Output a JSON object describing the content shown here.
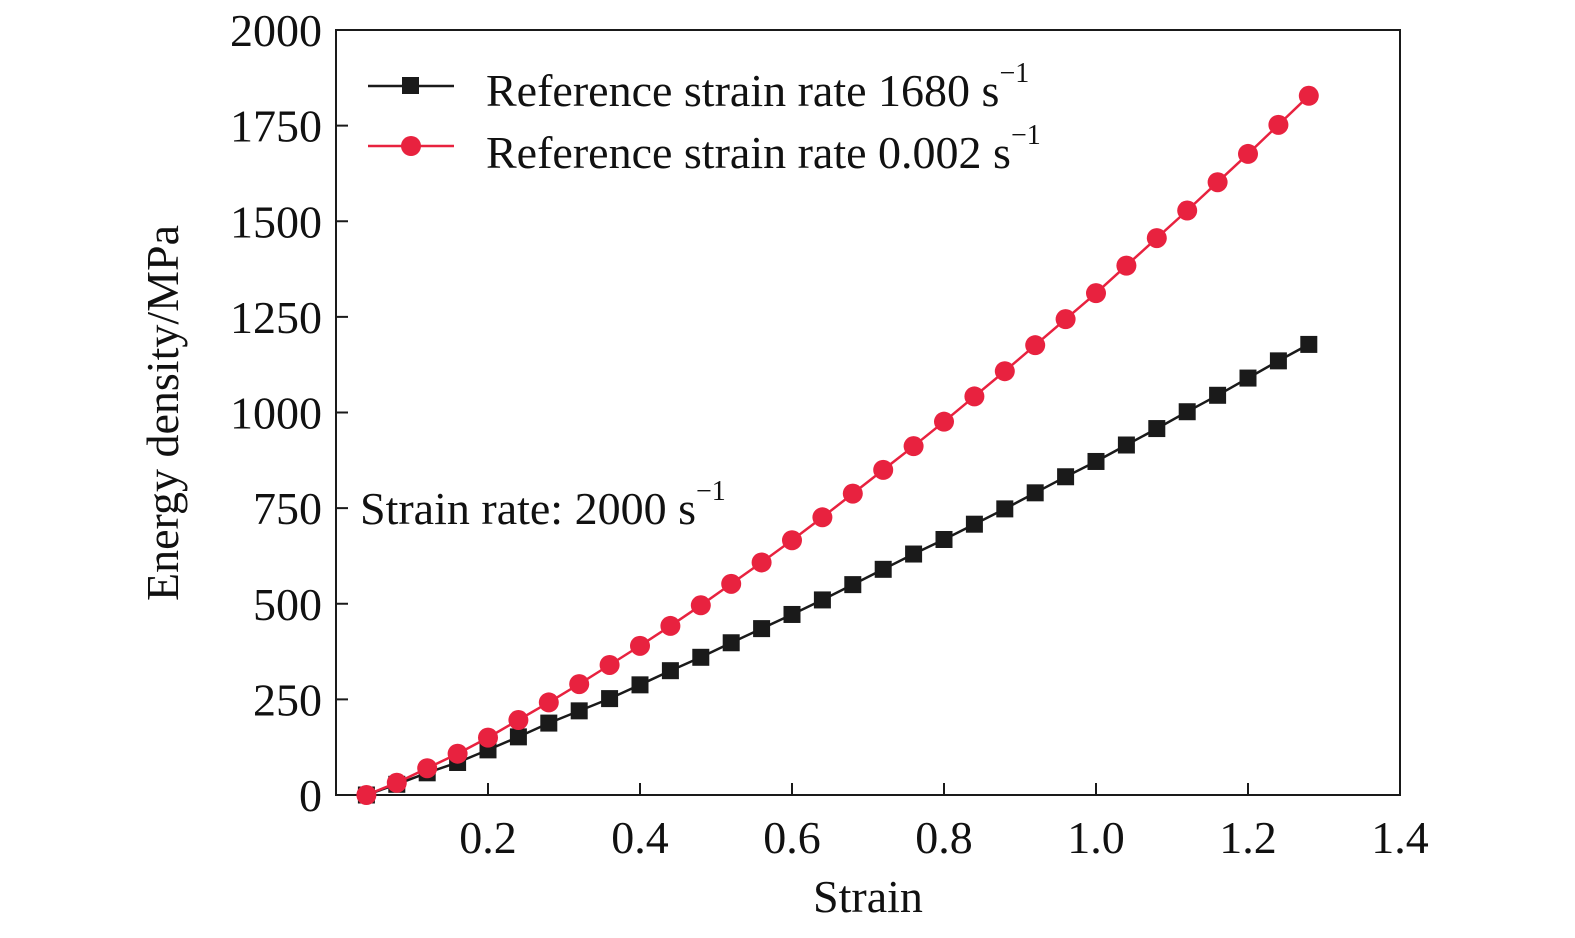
{
  "chart_data": {
    "type": "line",
    "title": "",
    "xlabel": "Strain",
    "ylabel": "Energy density/MPa",
    "xlim": [
      0.0,
      1.4
    ],
    "ylim": [
      0,
      2000
    ],
    "x_ticks": [
      0.2,
      0.4,
      0.6,
      0.8,
      1.0,
      1.2,
      1.4
    ],
    "x_tick_labels": [
      "0.2",
      "0.4",
      "0.6",
      "0.8",
      "1.0",
      "1.2",
      "1.4"
    ],
    "y_ticks": [
      0,
      250,
      500,
      750,
      1000,
      1250,
      1500,
      1750,
      2000
    ],
    "y_tick_labels": [
      "0",
      "250",
      "500",
      "750",
      "1000",
      "1250",
      "1500",
      "1750",
      "2000"
    ],
    "grid": false,
    "legend_position": "top-left",
    "annotation": {
      "text": "Strain rate: 2000 s",
      "superscript": "−1"
    },
    "x": [
      0.04,
      0.08,
      0.12,
      0.16,
      0.2,
      0.24,
      0.28,
      0.32,
      0.36,
      0.4,
      0.44,
      0.48,
      0.52,
      0.56,
      0.6,
      0.64,
      0.68,
      0.72,
      0.76,
      0.8,
      0.84,
      0.88,
      0.92,
      0.96,
      1.0,
      1.04,
      1.08,
      1.12,
      1.16,
      1.2,
      1.24,
      1.28
    ],
    "series": [
      {
        "name": "Reference strain rate 1680 s",
        "name_superscript": "−1",
        "color": "#1a1a1a",
        "marker": "square",
        "values": [
          0,
          28,
          58,
          85,
          118,
          152,
          188,
          220,
          252,
          288,
          325,
          360,
          398,
          435,
          472,
          510,
          550,
          590,
          630,
          668,
          708,
          748,
          790,
          832,
          872,
          915,
          958,
          1002,
          1045,
          1090,
          1135,
          1178
        ]
      },
      {
        "name": "Reference strain rate 0.002 s",
        "name_superscript": "−1",
        "color": "#e8223f",
        "marker": "circle",
        "values": [
          0,
          32,
          70,
          108,
          150,
          196,
          242,
          290,
          340,
          390,
          442,
          496,
          552,
          608,
          666,
          726,
          788,
          850,
          912,
          976,
          1042,
          1108,
          1176,
          1244,
          1312,
          1384,
          1456,
          1528,
          1602,
          1676,
          1752,
          1828
        ]
      }
    ]
  }
}
